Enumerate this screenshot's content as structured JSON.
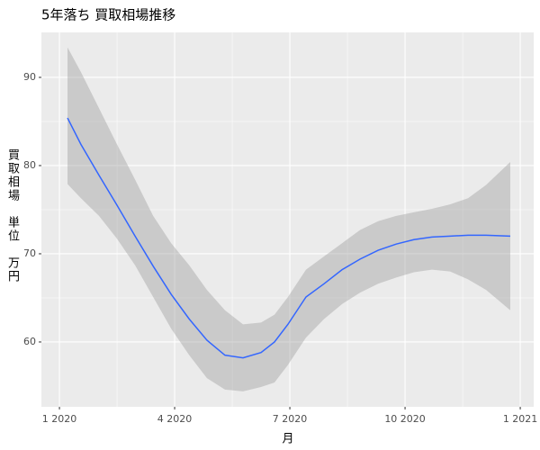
{
  "chart_data": {
    "type": "smooth",
    "title": "5年落ち 買取相場推移",
    "xlabel": "月",
    "ylabel": "買取相場　単位　万円",
    "x": [
      0.21,
      0.56,
      1.03,
      1.5,
      1.97,
      2.44,
      2.91,
      3.38,
      3.84,
      4.31,
      4.78,
      5.25,
      5.6,
      5.95,
      6.42,
      6.89,
      7.36,
      7.83,
      8.3,
      8.77,
      9.23,
      9.7,
      10.17,
      10.64,
      11.11,
      11.74
    ],
    "values": [
      85.4,
      82.4,
      78.9,
      75.5,
      72.0,
      68.6,
      65.4,
      62.6,
      60.2,
      58.5,
      58.2,
      58.8,
      60.0,
      62.0,
      65.1,
      66.6,
      68.2,
      69.4,
      70.4,
      71.1,
      71.6,
      71.9,
      72.0,
      72.1,
      72.1,
      72.0
    ],
    "upper": [
      93.4,
      90.6,
      86.5,
      82.4,
      78.4,
      74.3,
      71.2,
      68.7,
      65.9,
      63.6,
      62.0,
      62.2,
      63.1,
      65.1,
      68.2,
      69.7,
      71.2,
      72.7,
      73.7,
      74.3,
      74.7,
      75.1,
      75.6,
      76.3,
      77.8,
      80.4
    ],
    "lower": [
      77.9,
      76.3,
      74.3,
      71.7,
      68.7,
      65.1,
      61.5,
      58.5,
      55.9,
      54.6,
      54.4,
      54.9,
      55.4,
      57.4,
      60.5,
      62.6,
      64.3,
      65.6,
      66.6,
      67.3,
      67.9,
      68.2,
      68.0,
      67.1,
      65.9,
      63.6
    ],
    "color": "#3366FF",
    "band_color": "#999999",
    "xlim": [
      -0.47,
      12.35
    ],
    "ylim": [
      52.65,
      95.1
    ],
    "xticks": [
      {
        "value": 0,
        "label": "1 2020"
      },
      {
        "value": 3,
        "label": "4 2020"
      },
      {
        "value": 6,
        "label": "7 2020"
      },
      {
        "value": 9,
        "label": "10 2020"
      },
      {
        "value": 12,
        "label": "1 2021"
      }
    ],
    "yticks": [
      60,
      70,
      80,
      90
    ],
    "grid": true
  }
}
